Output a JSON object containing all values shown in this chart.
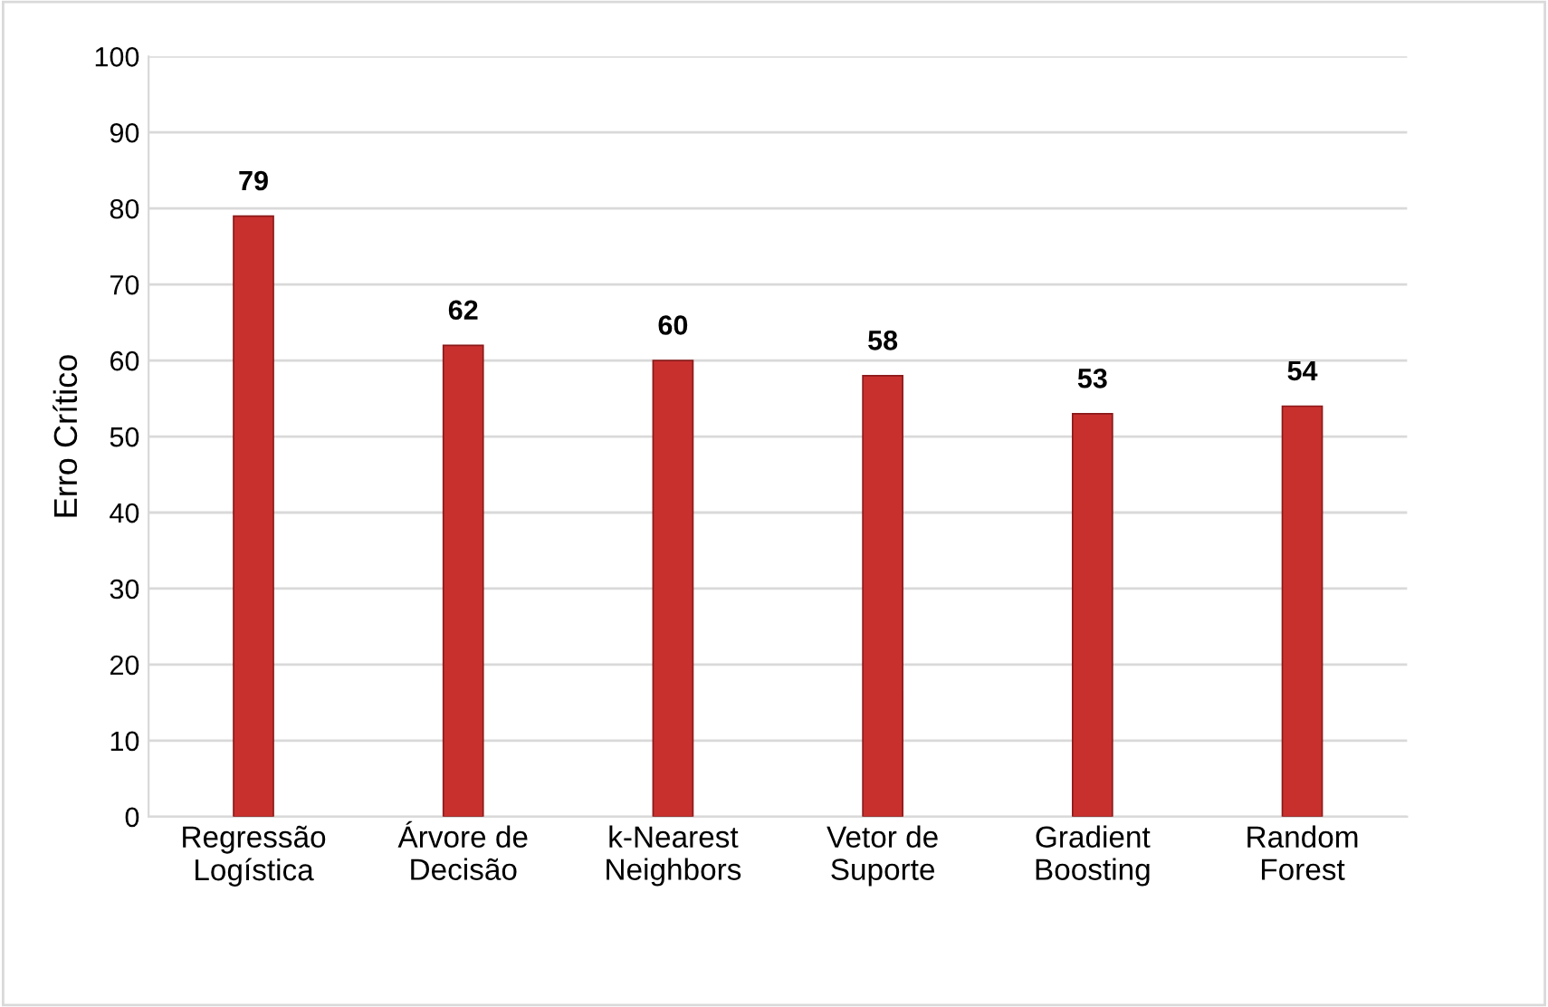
{
  "chart_data": {
    "type": "bar",
    "ylabel": "Erro Crítico",
    "categories": [
      "Regressão\nLogística",
      "Árvore de\nDecisão",
      "k-Nearest\nNeighbors",
      "Vetor de\nSuporte",
      "Gradient\nBoosting",
      "Random\nForest"
    ],
    "values": [
      79,
      62,
      60,
      58,
      53,
      54
    ],
    "color": "#c8302e",
    "ylim": [
      0,
      100
    ],
    "yticks": [
      0,
      10,
      20,
      30,
      40,
      50,
      60,
      70,
      80,
      90,
      100
    ],
    "grid": "y",
    "data_labels": true
  }
}
